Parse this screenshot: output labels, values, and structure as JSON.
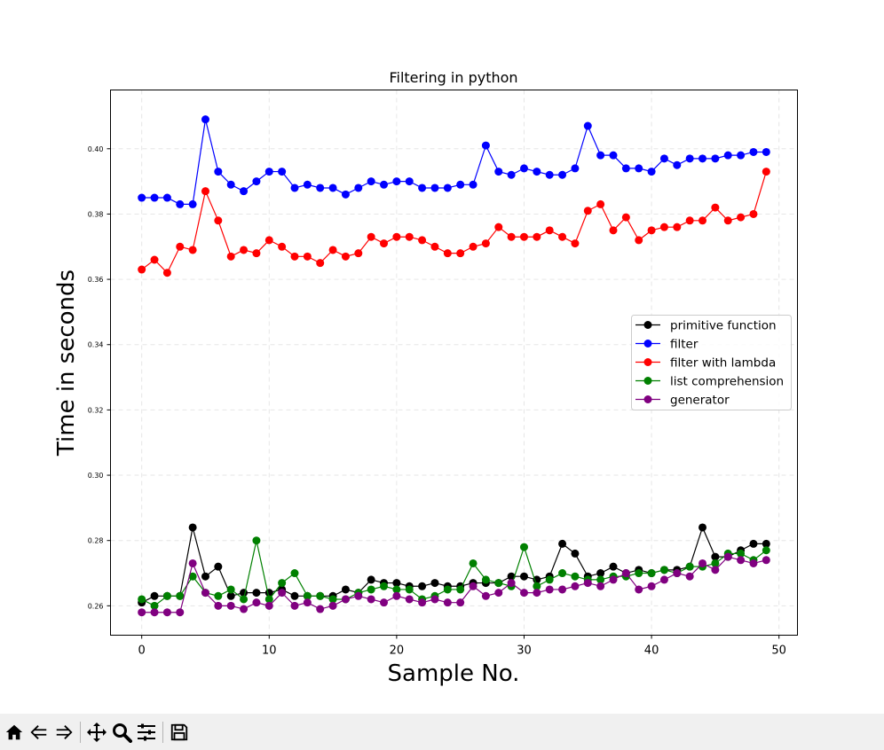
{
  "chart_data": {
    "type": "line",
    "title": "Filtering in python",
    "xlabel": "Sample No.",
    "ylabel": "Time in seconds",
    "xlim": [
      -2.45,
      51.45
    ],
    "ylim": [
      0.251,
      0.418
    ],
    "xticks": [
      0,
      10,
      20,
      30,
      40,
      50
    ],
    "yticks": [
      0.26,
      0.28,
      0.3,
      0.32,
      0.34,
      0.36,
      0.38,
      0.4
    ],
    "xtick_labels": [
      "0",
      "10",
      "20",
      "30",
      "40",
      "50"
    ],
    "ytick_labels": [
      "0.26",
      "0.28",
      "0.30",
      "0.32",
      "0.34",
      "0.36",
      "0.38",
      "0.40"
    ],
    "grid": true,
    "legend_position": "center-right",
    "x": [
      0,
      1,
      2,
      3,
      4,
      5,
      6,
      7,
      8,
      9,
      10,
      11,
      12,
      13,
      14,
      15,
      16,
      17,
      18,
      19,
      20,
      21,
      22,
      23,
      24,
      25,
      26,
      27,
      28,
      29,
      30,
      31,
      32,
      33,
      34,
      35,
      36,
      37,
      38,
      39,
      40,
      41,
      42,
      43,
      44,
      45,
      46,
      47,
      48,
      49
    ],
    "series": [
      {
        "name": "primitive function",
        "color": "#000000",
        "values": [
          0.261,
          0.263,
          0.263,
          0.263,
          0.284,
          0.269,
          0.272,
          0.263,
          0.264,
          0.264,
          0.264,
          0.265,
          0.263,
          0.263,
          0.263,
          0.263,
          0.265,
          0.264,
          0.268,
          0.267,
          0.267,
          0.266,
          0.266,
          0.267,
          0.266,
          0.266,
          0.267,
          0.267,
          0.267,
          0.269,
          0.269,
          0.268,
          0.269,
          0.279,
          0.276,
          0.269,
          0.27,
          0.272,
          0.27,
          0.271,
          0.27,
          0.271,
          0.271,
          0.272,
          0.284,
          0.275,
          0.275,
          0.277,
          0.279,
          0.279
        ]
      },
      {
        "name": "filter",
        "color": "#0000ff",
        "values": [
          0.385,
          0.385,
          0.385,
          0.383,
          0.383,
          0.409,
          0.393,
          0.389,
          0.387,
          0.39,
          0.393,
          0.393,
          0.388,
          0.389,
          0.388,
          0.388,
          0.386,
          0.388,
          0.39,
          0.389,
          0.39,
          0.39,
          0.388,
          0.388,
          0.388,
          0.389,
          0.389,
          0.401,
          0.393,
          0.392,
          0.394,
          0.393,
          0.392,
          0.392,
          0.394,
          0.407,
          0.398,
          0.398,
          0.394,
          0.394,
          0.393,
          0.397,
          0.395,
          0.397,
          0.397,
          0.397,
          0.398,
          0.398,
          0.399,
          0.399
        ]
      },
      {
        "name": "filter with lambda",
        "color": "#ff0000",
        "values": [
          0.363,
          0.366,
          0.362,
          0.37,
          0.369,
          0.387,
          0.378,
          0.367,
          0.369,
          0.368,
          0.372,
          0.37,
          0.367,
          0.367,
          0.365,
          0.369,
          0.367,
          0.368,
          0.373,
          0.371,
          0.373,
          0.373,
          0.372,
          0.37,
          0.368,
          0.368,
          0.37,
          0.371,
          0.376,
          0.373,
          0.373,
          0.373,
          0.375,
          0.373,
          0.371,
          0.381,
          0.383,
          0.375,
          0.379,
          0.372,
          0.375,
          0.376,
          0.376,
          0.378,
          0.378,
          0.382,
          0.378,
          0.379,
          0.38,
          0.393
        ]
      },
      {
        "name": "list comprehension",
        "color": "#008000",
        "values": [
          0.262,
          0.26,
          0.263,
          0.263,
          0.269,
          0.264,
          0.263,
          0.265,
          0.262,
          0.28,
          0.262,
          0.267,
          0.27,
          0.263,
          0.263,
          0.262,
          0.262,
          0.264,
          0.265,
          0.266,
          0.265,
          0.265,
          0.262,
          0.263,
          0.265,
          0.265,
          0.273,
          0.268,
          0.267,
          0.266,
          0.278,
          0.266,
          0.268,
          0.27,
          0.269,
          0.268,
          0.268,
          0.269,
          0.269,
          0.27,
          0.27,
          0.271,
          0.27,
          0.272,
          0.272,
          0.273,
          0.276,
          0.276,
          0.274,
          0.277
        ]
      },
      {
        "name": "generator",
        "color": "#800080",
        "values": [
          0.258,
          0.258,
          0.258,
          0.258,
          0.273,
          0.264,
          0.26,
          0.26,
          0.259,
          0.261,
          0.26,
          0.264,
          0.26,
          0.261,
          0.259,
          0.26,
          0.262,
          0.263,
          0.262,
          0.261,
          0.263,
          0.262,
          0.261,
          0.262,
          0.261,
          0.261,
          0.266,
          0.263,
          0.264,
          0.267,
          0.264,
          0.264,
          0.265,
          0.265,
          0.266,
          0.267,
          0.266,
          0.268,
          0.27,
          0.265,
          0.266,
          0.268,
          0.27,
          0.269,
          0.273,
          0.271,
          0.275,
          0.274,
          0.273,
          0.274
        ]
      }
    ]
  },
  "toolbar": {
    "buttons": [
      "home-icon",
      "back-arrow-icon",
      "forward-arrow-icon",
      "pan-icon",
      "zoom-icon",
      "configure-subplots-icon",
      "save-icon"
    ]
  }
}
